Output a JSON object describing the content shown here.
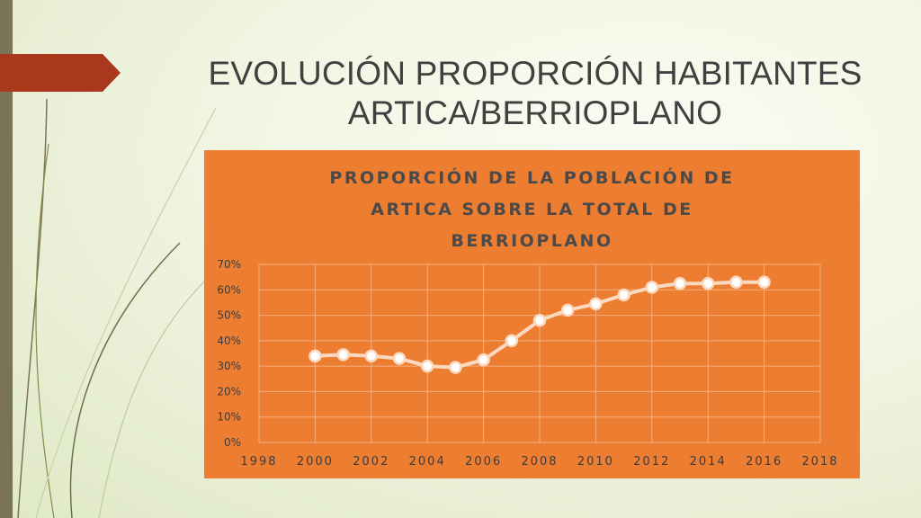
{
  "slide": {
    "title_line1": "EVOLUCIÓN PROPORCIÓN HABITANTES",
    "title_line2": "ARTICA/BERRIOPLANO",
    "accent_color": "#a9381c",
    "sidebar_color": "#7b7355"
  },
  "chart_data": {
    "type": "line",
    "title_lines": [
      "PROPORCIÓN DE LA POBLACIÓN DE",
      "ARTICA SOBRE LA TOTAL DE",
      "BERRIOPLANO"
    ],
    "background_color": "#ed7d31",
    "line_color": "#fbd9c0",
    "marker_fill": "#ffffff",
    "xlim": [
      1998,
      2018
    ],
    "xticks": [
      1998,
      2000,
      2002,
      2004,
      2006,
      2008,
      2010,
      2012,
      2014,
      2016,
      2018
    ],
    "ylim": [
      0,
      70
    ],
    "yticks": [
      0,
      10,
      20,
      30,
      40,
      50,
      60,
      70
    ],
    "ytick_labels": [
      "0%",
      "10%",
      "20%",
      "30%",
      "40%",
      "50%",
      "60%",
      "70%"
    ],
    "grid": true,
    "x": [
      2000,
      2001,
      2002,
      2003,
      2004,
      2005,
      2006,
      2007,
      2008,
      2009,
      2010,
      2011,
      2012,
      2013,
      2014,
      2015,
      2016
    ],
    "values": [
      34,
      34.5,
      34,
      33,
      30,
      29.5,
      32.5,
      40,
      48,
      52,
      54.5,
      58,
      61,
      62.5,
      62.5,
      63,
      63
    ]
  }
}
